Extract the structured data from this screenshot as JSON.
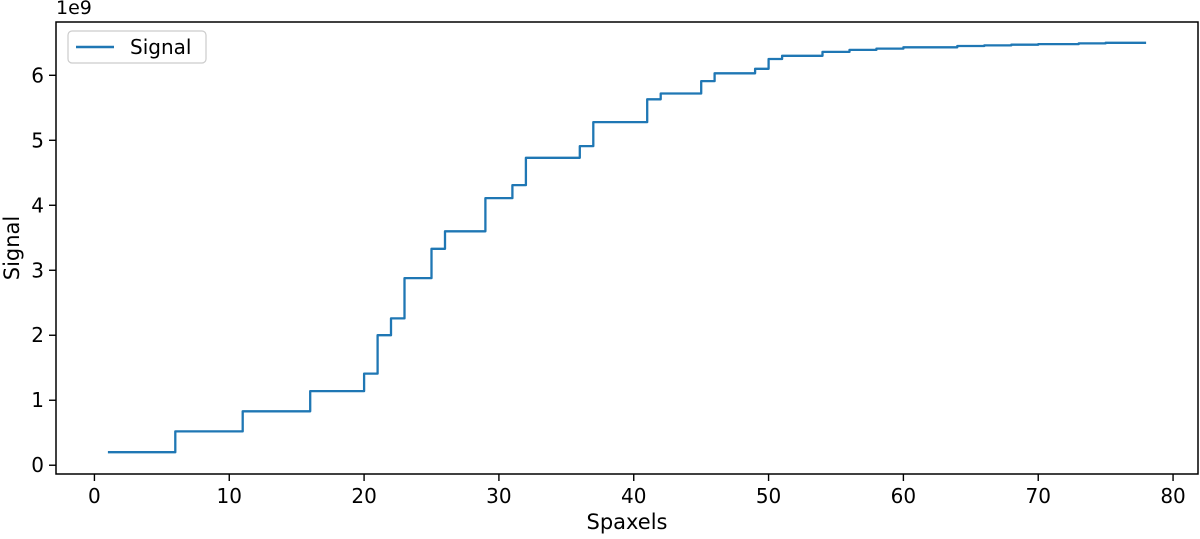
{
  "figure": {
    "offset_text": "1e9",
    "xlabel": "Spaxels",
    "ylabel": "Signal",
    "legend_label": "Signal",
    "line_color": "#1f77b4",
    "spine_color": "#000000",
    "legend_border_color": "#cccccc",
    "background_color": "#ffffff"
  },
  "chart_data": {
    "type": "line",
    "style": "steps-post",
    "title": "",
    "xlabel": "Spaxels",
    "ylabel": "Signal",
    "unit_multiplier": "1e9",
    "legend": [
      "Signal"
    ],
    "legend_position": "upper left",
    "grid": false,
    "xlim": [
      -2.85,
      81.85
    ],
    "ylim": [
      -0.135,
      6.82
    ],
    "xticks": [
      0,
      10,
      20,
      30,
      40,
      50,
      60,
      70,
      80
    ],
    "yticks": [
      0,
      1,
      2,
      3,
      4,
      5,
      6
    ],
    "series_note": "cumulative signal (units of 1e9) vs spaxel number; y value holds from given x until next listed x",
    "x": [
      1,
      6,
      11,
      16,
      20,
      21,
      22,
      23,
      25,
      26,
      29,
      31,
      32,
      36,
      37,
      41,
      42,
      45,
      46,
      49,
      50,
      51,
      54,
      56,
      58,
      60,
      64,
      66,
      68,
      70,
      73,
      75,
      78
    ],
    "y": [
      0.2,
      0.52,
      0.83,
      1.14,
      1.41,
      2.0,
      2.26,
      2.88,
      3.33,
      3.6,
      4.11,
      4.31,
      4.73,
      4.91,
      5.28,
      5.63,
      5.72,
      5.91,
      6.03,
      6.1,
      6.25,
      6.3,
      6.36,
      6.39,
      6.41,
      6.43,
      6.45,
      6.46,
      6.47,
      6.48,
      6.49,
      6.5,
      6.5
    ]
  }
}
